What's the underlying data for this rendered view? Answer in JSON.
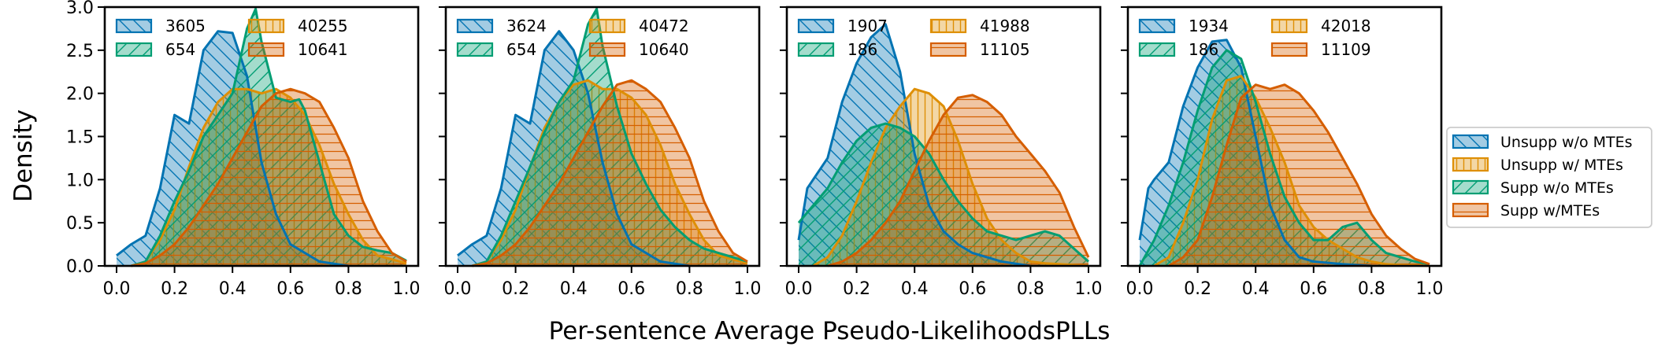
{
  "chart_data": {
    "type": "area",
    "xlabel": "Per-sentence Average Pseudo-LikelihoodsPLLs",
    "ylabel": "Density",
    "xlim": [
      0,
      1
    ],
    "ylim": [
      0,
      3
    ],
    "x_ticks": [
      "0.0",
      "0.2",
      "0.4",
      "0.6",
      "0.8",
      "1.0"
    ],
    "y_ticks": [
      "0.0",
      "0.5",
      "1.0",
      "1.5",
      "2.0",
      "2.5",
      "3.0"
    ],
    "colors": {
      "unsupp_wo": "#0173b2",
      "unsupp_w": "#de8f05",
      "supp_wo": "#029e73",
      "supp_w": "#d55e00"
    },
    "legend": {
      "position": "right",
      "entries": [
        "Unsupp w/o MTEs",
        "Unsupp w/ MTEs",
        "Supp w/o MTEs",
        "Supp w/MTEs"
      ]
    },
    "panels": [
      {
        "counts": [
          "3605",
          "654",
          "40255",
          "10641"
        ],
        "series": [
          {
            "name": "Unsupp w/o MTEs",
            "x": [
              0,
              0.05,
              0.1,
              0.15,
              0.2,
              0.25,
              0.3,
              0.35,
              0.4,
              0.45,
              0.5,
              0.55,
              0.6,
              0.7,
              0.8
            ],
            "y": [
              0.12,
              0.25,
              0.35,
              0.9,
              1.75,
              1.65,
              2.5,
              2.72,
              2.7,
              2.2,
              1.2,
              0.6,
              0.25,
              0.05,
              0
            ]
          },
          {
            "name": "Unsupp w/ MTEs",
            "x": [
              0.05,
              0.1,
              0.15,
              0.2,
              0.25,
              0.3,
              0.35,
              0.4,
              0.45,
              0.5,
              0.55,
              0.6,
              0.65,
              0.7,
              0.75,
              0.8,
              0.85,
              0.9,
              1.0
            ],
            "y": [
              0,
              0.05,
              0.3,
              0.65,
              1.15,
              1.6,
              1.9,
              2.05,
              2.05,
              2.0,
              2.05,
              1.95,
              1.75,
              1.4,
              0.95,
              0.6,
              0.3,
              0.12,
              0.03
            ]
          },
          {
            "name": "Supp w/o MTEs",
            "x": [
              0.05,
              0.1,
              0.15,
              0.2,
              0.25,
              0.3,
              0.35,
              0.4,
              0.45,
              0.48,
              0.5,
              0.55,
              0.6,
              0.63,
              0.65,
              0.7,
              0.75,
              0.8,
              0.85,
              0.9,
              0.95,
              1.0
            ],
            "y": [
              0,
              0.05,
              0.35,
              0.75,
              1.1,
              1.5,
              1.75,
              2.0,
              2.75,
              2.98,
              2.6,
              1.95,
              1.9,
              1.93,
              1.8,
              1.2,
              0.6,
              0.35,
              0.22,
              0.18,
              0.15,
              0.06
            ]
          },
          {
            "name": "Supp w/MTEs",
            "x": [
              0.05,
              0.1,
              0.15,
              0.2,
              0.25,
              0.3,
              0.35,
              0.4,
              0.45,
              0.5,
              0.55,
              0.6,
              0.65,
              0.7,
              0.75,
              0.8,
              0.85,
              0.9,
              0.95,
              1.0
            ],
            "y": [
              0,
              0.03,
              0.12,
              0.25,
              0.45,
              0.7,
              0.95,
              1.25,
              1.55,
              1.85,
              2.0,
              2.05,
              2.0,
              1.9,
              1.6,
              1.25,
              0.75,
              0.4,
              0.15,
              0.05
            ]
          }
        ]
      },
      {
        "counts": [
          "3624",
          "654",
          "40472",
          "10640"
        ],
        "series": [
          {
            "name": "Unsupp w/o MTEs",
            "x": [
              0,
              0.05,
              0.1,
              0.15,
              0.2,
              0.25,
              0.3,
              0.35,
              0.4,
              0.45,
              0.5,
              0.55,
              0.6,
              0.7,
              0.8
            ],
            "y": [
              0.12,
              0.25,
              0.35,
              0.9,
              1.75,
              1.65,
              2.5,
              2.72,
              2.5,
              2.0,
              1.2,
              0.6,
              0.25,
              0.05,
              0
            ]
          },
          {
            "name": "Unsupp w/ MTEs",
            "x": [
              0.05,
              0.1,
              0.15,
              0.2,
              0.25,
              0.3,
              0.35,
              0.4,
              0.45,
              0.5,
              0.55,
              0.6,
              0.65,
              0.7,
              0.75,
              0.8,
              0.85,
              0.9,
              1.0
            ],
            "y": [
              0,
              0.05,
              0.3,
              0.65,
              1.15,
              1.6,
              1.9,
              2.1,
              2.15,
              2.05,
              2.05,
              1.95,
              1.75,
              1.4,
              0.95,
              0.6,
              0.3,
              0.12,
              0.03
            ]
          },
          {
            "name": "Supp w/o MTEs",
            "x": [
              0.05,
              0.1,
              0.15,
              0.2,
              0.25,
              0.3,
              0.35,
              0.4,
              0.45,
              0.48,
              0.5,
              0.55,
              0.6,
              0.65,
              0.7,
              0.75,
              0.8,
              0.85,
              0.9,
              0.95,
              1.0
            ],
            "y": [
              0,
              0.05,
              0.35,
              0.75,
              1.15,
              1.55,
              1.9,
              2.15,
              2.8,
              2.98,
              2.55,
              1.85,
              1.3,
              0.95,
              0.65,
              0.45,
              0.3,
              0.2,
              0.15,
              0.1,
              0.05
            ]
          },
          {
            "name": "Supp w/MTEs",
            "x": [
              0.05,
              0.1,
              0.15,
              0.2,
              0.25,
              0.3,
              0.35,
              0.4,
              0.45,
              0.5,
              0.55,
              0.6,
              0.65,
              0.7,
              0.75,
              0.8,
              0.85,
              0.9,
              0.95,
              1.0
            ],
            "y": [
              0,
              0.03,
              0.12,
              0.25,
              0.45,
              0.7,
              0.95,
              1.25,
              1.55,
              1.85,
              2.1,
              2.15,
              2.05,
              1.9,
              1.6,
              1.25,
              0.75,
              0.4,
              0.15,
              0.05
            ]
          }
        ]
      },
      {
        "counts": [
          "1907",
          "186",
          "41988",
          "11105"
        ],
        "series": [
          {
            "name": "Unsupp w/o MTEs",
            "x": [
              0,
              0.03,
              0.05,
              0.1,
              0.15,
              0.2,
              0.25,
              0.3,
              0.35,
              0.4,
              0.45,
              0.5,
              0.55,
              0.6,
              0.7,
              0.8
            ],
            "y": [
              0.3,
              0.9,
              1.0,
              1.25,
              1.9,
              2.35,
              2.65,
              2.8,
              2.25,
              1.3,
              0.7,
              0.4,
              0.25,
              0.15,
              0.05,
              0
            ]
          },
          {
            "name": "Unsupp w/ MTEs",
            "x": [
              0.05,
              0.1,
              0.15,
              0.2,
              0.25,
              0.3,
              0.35,
              0.4,
              0.45,
              0.5,
              0.55,
              0.6,
              0.65,
              0.7,
              0.75,
              0.8,
              0.85,
              0.9,
              1.0
            ],
            "y": [
              0,
              0.1,
              0.35,
              0.75,
              1.2,
              1.6,
              1.85,
              2.05,
              2.0,
              1.85,
              1.45,
              0.95,
              0.55,
              0.3,
              0.15,
              0.05,
              0.03,
              0.02,
              0
            ]
          },
          {
            "name": "Supp w/o MTEs",
            "x": [
              0,
              0.05,
              0.1,
              0.15,
              0.2,
              0.25,
              0.3,
              0.35,
              0.4,
              0.45,
              0.5,
              0.55,
              0.6,
              0.65,
              0.7,
              0.75,
              0.8,
              0.85,
              0.9,
              0.95,
              1.0
            ],
            "y": [
              0.5,
              0.7,
              0.9,
              1.2,
              1.45,
              1.6,
              1.65,
              1.6,
              1.5,
              1.3,
              1.0,
              0.75,
              0.55,
              0.4,
              0.35,
              0.3,
              0.35,
              0.4,
              0.35,
              0.2,
              0.05
            ]
          },
          {
            "name": "Supp w/MTEs",
            "x": [
              0.1,
              0.15,
              0.2,
              0.25,
              0.3,
              0.35,
              0.4,
              0.45,
              0.5,
              0.55,
              0.6,
              0.65,
              0.7,
              0.75,
              0.8,
              0.85,
              0.9,
              0.95,
              1.0
            ],
            "y": [
              0,
              0.05,
              0.15,
              0.3,
              0.5,
              0.75,
              1.1,
              1.45,
              1.75,
              1.95,
              1.98,
              1.9,
              1.75,
              1.5,
              1.3,
              1.1,
              0.85,
              0.45,
              0.1
            ]
          }
        ]
      },
      {
        "counts": [
          "1934",
          "186",
          "42018",
          "11109"
        ],
        "series": [
          {
            "name": "Unsupp w/o MTEs",
            "x": [
              0,
              0.03,
              0.05,
              0.1,
              0.15,
              0.2,
              0.25,
              0.3,
              0.35,
              0.4,
              0.45,
              0.5,
              0.55,
              0.6,
              0.7,
              0.8
            ],
            "y": [
              0.3,
              0.9,
              1.0,
              1.2,
              1.85,
              2.3,
              2.6,
              2.62,
              2.3,
              1.5,
              0.7,
              0.3,
              0.1,
              0.05,
              0.02,
              0
            ]
          },
          {
            "name": "Unsupp w/ MTEs",
            "x": [
              0.05,
              0.1,
              0.15,
              0.2,
              0.25,
              0.3,
              0.35,
              0.4,
              0.45,
              0.5,
              0.55,
              0.6,
              0.65,
              0.7,
              0.75,
              0.8,
              0.85,
              0.9,
              1.0
            ],
            "y": [
              0,
              0.1,
              0.5,
              1.0,
              1.7,
              2.15,
              2.2,
              1.95,
              1.6,
              1.2,
              0.7,
              0.45,
              0.3,
              0.2,
              0.1,
              0.05,
              0.02,
              0.01,
              0
            ]
          },
          {
            "name": "Supp w/o MTEs",
            "x": [
              0,
              0.05,
              0.1,
              0.15,
              0.2,
              0.25,
              0.3,
              0.35,
              0.4,
              0.45,
              0.5,
              0.55,
              0.6,
              0.65,
              0.7,
              0.75,
              0.8,
              0.85,
              0.9,
              0.95,
              1.0
            ],
            "y": [
              0,
              0.3,
              0.7,
              1.2,
              1.8,
              2.3,
              2.5,
              2.4,
              1.9,
              1.3,
              0.8,
              0.5,
              0.3,
              0.3,
              0.45,
              0.5,
              0.3,
              0.15,
              0.1,
              0.05,
              0.02
            ]
          },
          {
            "name": "Supp w/MTEs",
            "x": [
              0.1,
              0.15,
              0.2,
              0.25,
              0.3,
              0.35,
              0.4,
              0.45,
              0.5,
              0.55,
              0.6,
              0.65,
              0.7,
              0.75,
              0.8,
              0.85,
              0.9,
              0.95,
              1.0
            ],
            "y": [
              0,
              0.1,
              0.3,
              0.8,
              1.4,
              1.95,
              2.1,
              2.05,
              2.1,
              2.0,
              1.8,
              1.55,
              1.25,
              0.95,
              0.6,
              0.35,
              0.2,
              0.08,
              0.02
            ]
          }
        ]
      }
    ]
  }
}
